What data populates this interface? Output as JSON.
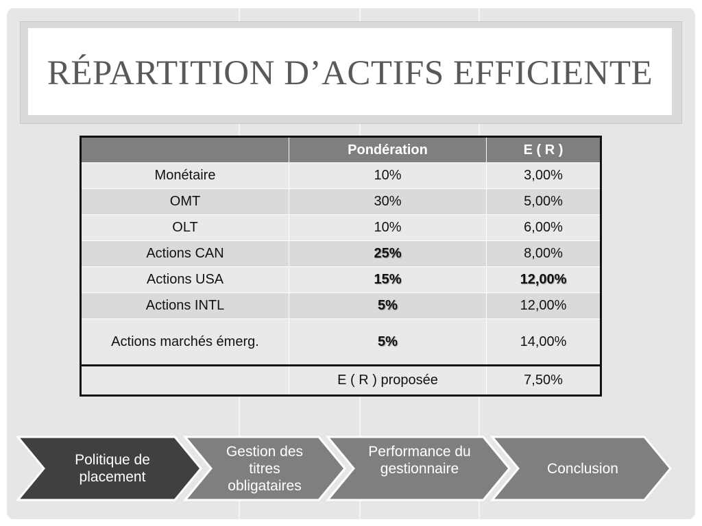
{
  "title": "RÉPARTITION D’ACTIFS EFFICIENTE",
  "table": {
    "headers": [
      "",
      "Pondération",
      "E ( R )"
    ],
    "rows": [
      {
        "asset": "Monétaire",
        "weight": "10%",
        "return": "3,00%"
      },
      {
        "asset": "OMT",
        "weight": "30%",
        "return": "5,00%"
      },
      {
        "asset": "OLT",
        "weight": "10%",
        "return": "6,00%"
      },
      {
        "asset": "Actions CAN",
        "weight": "25%",
        "return": "8,00%"
      },
      {
        "asset": "Actions USA",
        "weight": "15%",
        "return": "12,00%"
      },
      {
        "asset": "Actions INTL",
        "weight": "5%",
        "return": "12,00%"
      },
      {
        "asset": "Actions marchés émerg.",
        "weight": "5%",
        "return": "14,00%"
      }
    ],
    "total": {
      "label": "E ( R ) proposée",
      "value": "7,50%"
    }
  },
  "nav": [
    {
      "label": "Politique de placement",
      "active": true
    },
    {
      "label": "Gestion des titres obligataires",
      "active": false
    },
    {
      "label": "Performance du gestionnaire",
      "active": false
    },
    {
      "label": "Conclusion",
      "active": false
    }
  ],
  "colors": {
    "header_bg": "#7f7f7f",
    "nav_active": "#404040",
    "nav_inactive": "#7f7f7f"
  }
}
